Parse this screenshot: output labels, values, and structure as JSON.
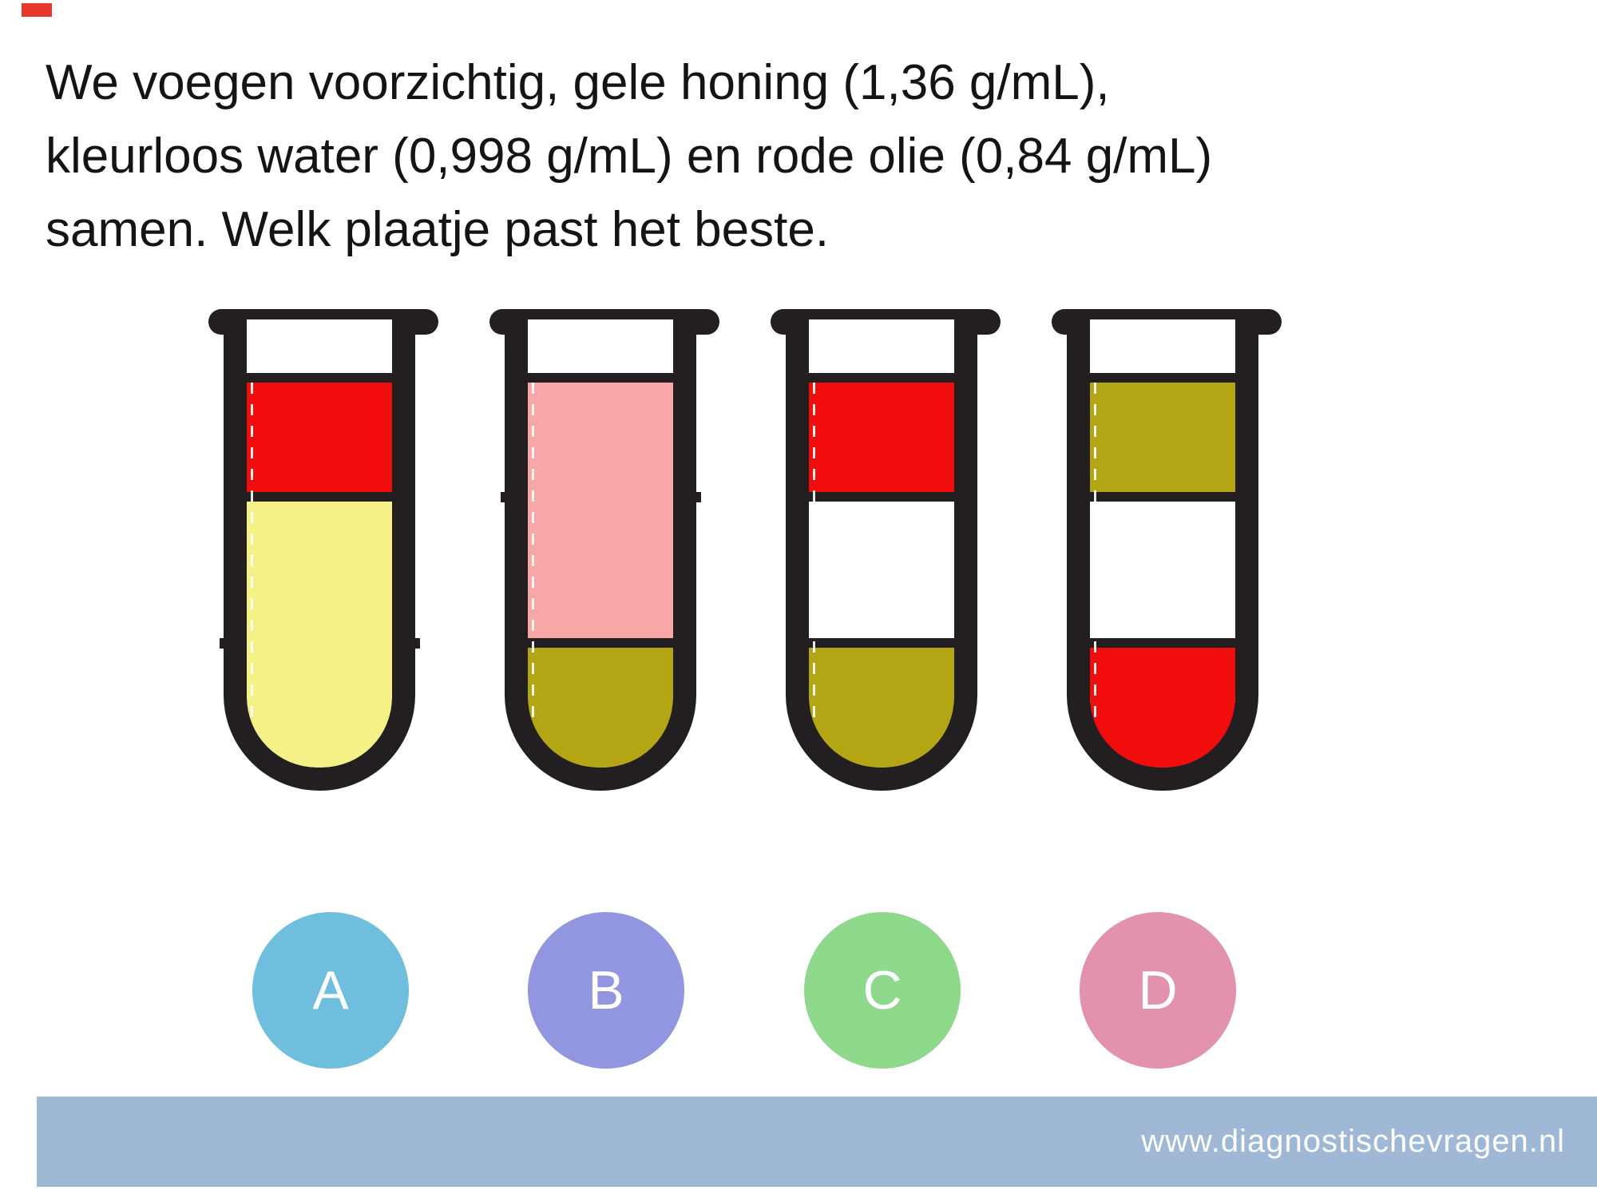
{
  "title": {
    "lines": [
      "We voegen voorzichtig, gele honing (1,36 g/mL),",
      "kleurloos water (0,998 g/mL) en rode olie (0,84 g/mL)",
      "samen. Welk plaatje past het beste."
    ]
  },
  "palette": {
    "ink": "#231F20",
    "page_bg": "#FFFFFF",
    "red": "#F20D0D",
    "pale_yellow": "#F5F187",
    "pink": "#F9A6A6",
    "olive": "#B3A513",
    "colorless": "#FFFFFF",
    "footer_bar": "#9EB8D5",
    "red_mark": "#E8372C"
  },
  "tubes": [
    {
      "label": "A",
      "layers": [
        {
          "substance": "red",
          "hex": "#F20D0D",
          "from": 79,
          "to": 216,
          "rounded": false
        },
        {
          "substance": "pale-yellow",
          "hex": "#F5F187",
          "from": 228,
          "to": 561,
          "rounded": true
        }
      ],
      "separators": [
        67,
        216
      ],
      "hidden_line_nubs": [
        399
      ]
    },
    {
      "label": "B",
      "layers": [
        {
          "substance": "pink",
          "hex": "#F9A6A6",
          "from": 79,
          "to": 399,
          "rounded": false
        },
        {
          "substance": "olive",
          "hex": "#B3A513",
          "from": 411,
          "to": 561,
          "rounded": true
        }
      ],
      "separators": [
        67,
        399
      ],
      "hidden_line_nubs": [
        216
      ]
    },
    {
      "label": "C",
      "layers": [
        {
          "substance": "red",
          "hex": "#F20D0D",
          "from": 79,
          "to": 216,
          "rounded": false
        },
        {
          "substance": "colorless",
          "hex": "#FFFFFF",
          "from": 228,
          "to": 399,
          "rounded": false
        },
        {
          "substance": "olive",
          "hex": "#B3A513",
          "from": 411,
          "to": 561,
          "rounded": true
        }
      ],
      "separators": [
        67,
        216,
        399
      ],
      "hidden_line_nubs": []
    },
    {
      "label": "D",
      "layers": [
        {
          "substance": "olive",
          "hex": "#B3A513",
          "from": 79,
          "to": 216,
          "rounded": false
        },
        {
          "substance": "colorless",
          "hex": "#FFFFFF",
          "from": 228,
          "to": 399,
          "rounded": false
        },
        {
          "substance": "red",
          "hex": "#F20D0D",
          "from": 411,
          "to": 561,
          "rounded": true
        }
      ],
      "separators": [
        67,
        216,
        399
      ],
      "hidden_line_nubs": []
    }
  ],
  "answers": [
    {
      "label": "A",
      "hex": "#6FBEDD"
    },
    {
      "label": "B",
      "hex": "#9295DF"
    },
    {
      "label": "C",
      "hex": "#8FD98D"
    },
    {
      "label": "D",
      "hex": "#E291AE"
    }
  ],
  "footer": {
    "url": "www.diagnostischevragen.nl"
  }
}
